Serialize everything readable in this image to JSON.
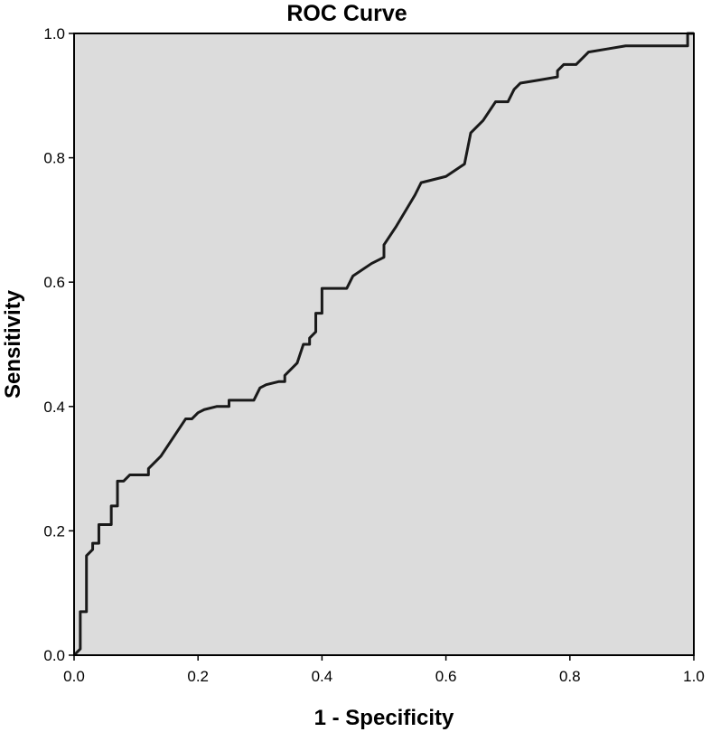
{
  "chart_data": {
    "type": "line",
    "title": "ROC Curve",
    "xlabel": "1 - Specificity",
    "ylabel": "Sensitivity",
    "xlim": [
      0,
      1
    ],
    "ylim": [
      0,
      1
    ],
    "x_ticks": [
      "0.0",
      "0.2",
      "0.4",
      "0.6",
      "0.8",
      "1.0"
    ],
    "y_ticks": [
      "0.0",
      "0.2",
      "0.4",
      "0.6",
      "0.8",
      "1.0"
    ],
    "grid": false,
    "legend": "none",
    "colors": {
      "plot_background": "#dcdcdc",
      "curve": "#1a1a1a",
      "axis": "#000000"
    },
    "series": [
      {
        "x": [
          0.0,
          0.01,
          0.01,
          0.02,
          0.02,
          0.03,
          0.03,
          0.04,
          0.04,
          0.06,
          0.06,
          0.07,
          0.07,
          0.08,
          0.09,
          0.12,
          0.12,
          0.14,
          0.16,
          0.18,
          0.19,
          0.2,
          0.21,
          0.23,
          0.25,
          0.25,
          0.29,
          0.3,
          0.31,
          0.33,
          0.34,
          0.34,
          0.36,
          0.37,
          0.38,
          0.38,
          0.39,
          0.39,
          0.4,
          0.4,
          0.44,
          0.45,
          0.48,
          0.5,
          0.5,
          0.52,
          0.55,
          0.56,
          0.6,
          0.63,
          0.64,
          0.66,
          0.68,
          0.7,
          0.71,
          0.72,
          0.75,
          0.78,
          0.78,
          0.79,
          0.8,
          0.81,
          0.82,
          0.83,
          0.86,
          0.89,
          0.91,
          0.93,
          0.99,
          0.99,
          1.0
        ],
        "y": [
          0.0,
          0.01,
          0.07,
          0.07,
          0.16,
          0.17,
          0.18,
          0.18,
          0.21,
          0.21,
          0.24,
          0.24,
          0.28,
          0.28,
          0.29,
          0.29,
          0.3,
          0.32,
          0.35,
          0.38,
          0.38,
          0.39,
          0.395,
          0.4,
          0.4,
          0.41,
          0.41,
          0.43,
          0.435,
          0.44,
          0.44,
          0.45,
          0.47,
          0.5,
          0.5,
          0.51,
          0.52,
          0.55,
          0.55,
          0.59,
          0.59,
          0.61,
          0.63,
          0.64,
          0.66,
          0.69,
          0.74,
          0.76,
          0.77,
          0.79,
          0.84,
          0.86,
          0.89,
          0.89,
          0.91,
          0.92,
          0.925,
          0.93,
          0.94,
          0.95,
          0.95,
          0.95,
          0.96,
          0.97,
          0.975,
          0.98,
          0.98,
          0.98,
          0.98,
          1.0,
          1.0
        ]
      }
    ]
  }
}
